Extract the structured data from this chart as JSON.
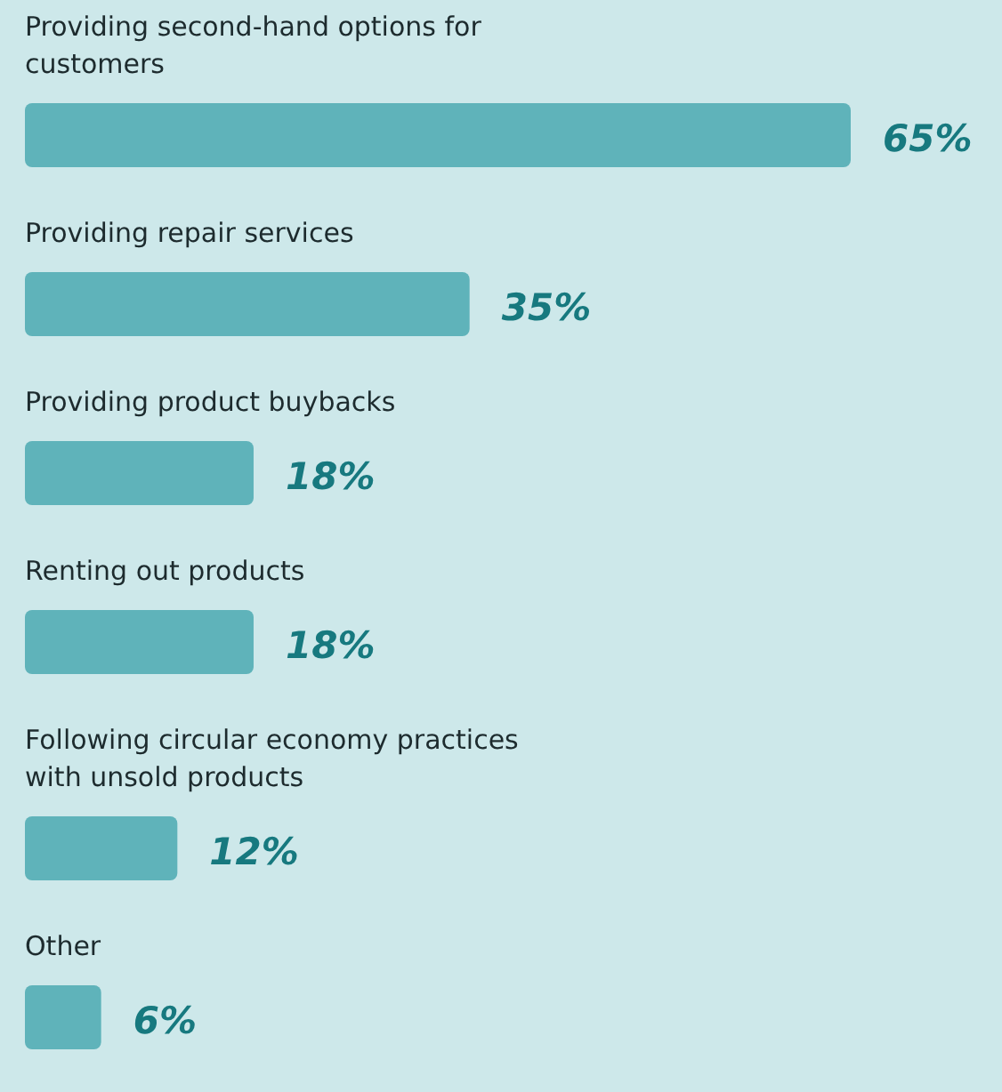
{
  "chart_data": {
    "type": "bar",
    "orientation": "horizontal",
    "relative": false,
    "categories": [
      "Providing second-hand options for customers",
      "Providing repair services",
      "Providing product buybacks",
      "Renting out products",
      "Following circular economy practices with unsold products",
      "Other"
    ],
    "values": [
      65,
      35,
      18,
      18,
      12,
      6
    ],
    "value_labels": [
      "65%",
      "35%",
      "18%",
      "18%",
      "12%",
      "6%"
    ],
    "color": "#5fb3ba"
  }
}
